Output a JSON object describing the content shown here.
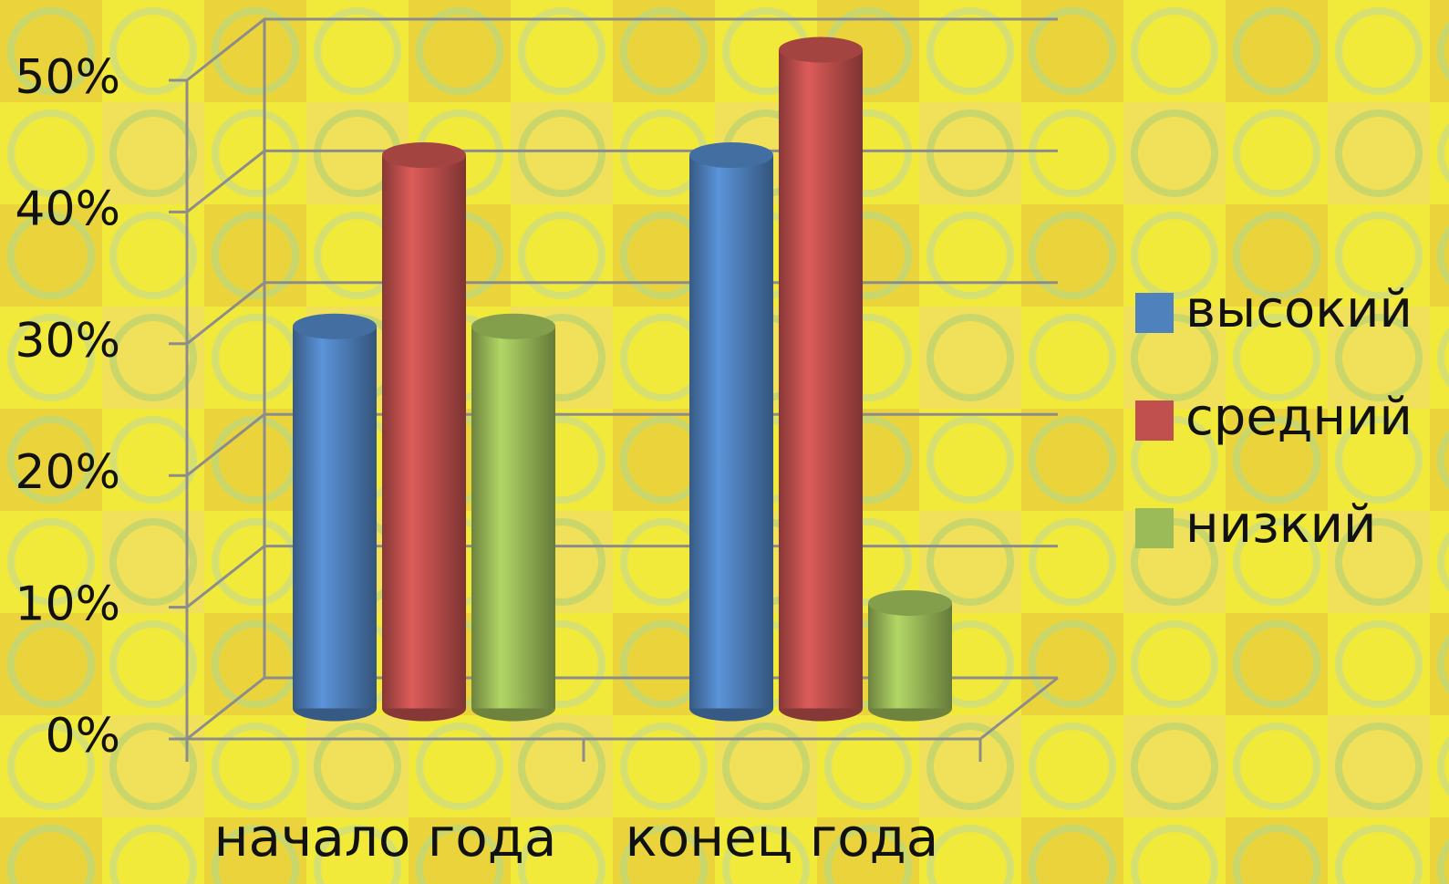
{
  "chart_data": {
    "type": "bar3d",
    "categories": [
      "начало года",
      "конец года"
    ],
    "series": [
      {
        "name": "высокий",
        "color": "#4f81bd",
        "values": [
          29,
          42
        ]
      },
      {
        "name": "средний",
        "color": "#c0504d",
        "values": [
          42,
          50
        ]
      },
      {
        "name": "низкий",
        "color": "#9bbb59",
        "values": [
          29,
          8
        ]
      }
    ],
    "ylim": [
      0,
      50
    ],
    "yticks": [
      {
        "value": 0,
        "label": "0%"
      },
      {
        "value": 10,
        "label": "10%"
      },
      {
        "value": 20,
        "label": "20%"
      },
      {
        "value": 30,
        "label": "30%"
      },
      {
        "value": 40,
        "label": "40%"
      },
      {
        "value": 50,
        "label": "50%"
      }
    ],
    "grid": true,
    "legend": "right"
  }
}
